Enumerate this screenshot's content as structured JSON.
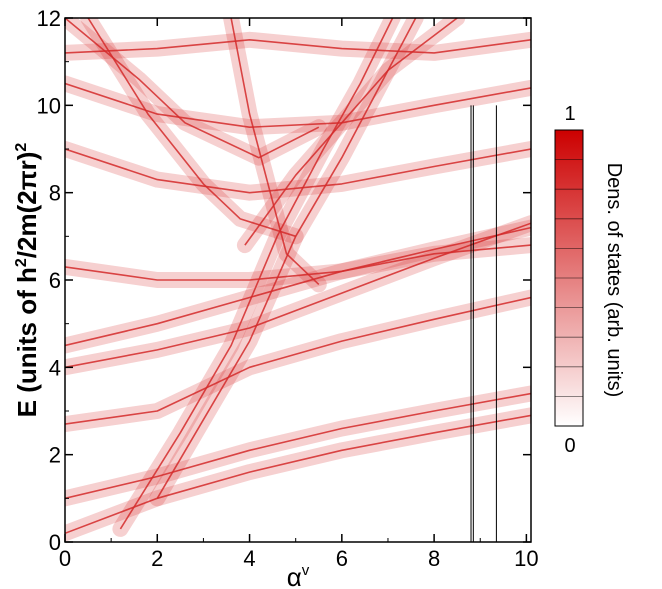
{
  "chart_data": {
    "type": "line",
    "xlabel_symbol": "α",
    "xlabel_superscript": "v",
    "ylabel_main": "E (units of h",
    "ylabel_sup1": "2",
    "ylabel_mid": "/2m(2πr)",
    "ylabel_sup2": "2",
    "xlim": [
      0,
      10.1
    ],
    "ylim": [
      0,
      12
    ],
    "x_ticks": [
      "0",
      "2",
      "4",
      "6",
      "8",
      "10"
    ],
    "y_ticks": [
      "0",
      "2",
      "4",
      "6",
      "8",
      "10",
      "12"
    ],
    "x_tick_values": [
      0,
      2,
      4,
      6,
      8,
      10
    ],
    "y_tick_values": [
      0,
      2,
      4,
      6,
      8,
      10,
      12
    ],
    "grid": false,
    "band_color": "#d42a2a",
    "colorbar": {
      "label": "Dens. of states (arb. units)",
      "max_label": "1",
      "min_label": "0",
      "range": [
        0,
        1
      ],
      "color_low": "#ffffff",
      "color_high": "#cc0000"
    },
    "series": [
      {
        "values": [
          [
            0,
            0.2
          ],
          [
            2,
            1.0
          ],
          [
            4,
            1.6
          ],
          [
            6,
            2.1
          ],
          [
            8,
            2.5
          ],
          [
            10.1,
            2.9
          ]
        ]
      },
      {
        "values": [
          [
            0,
            1.0
          ],
          [
            2,
            1.5
          ],
          [
            4,
            2.1
          ],
          [
            6,
            2.6
          ],
          [
            8,
            3.0
          ],
          [
            10.1,
            3.4
          ]
        ]
      },
      {
        "values": [
          [
            0,
            2.7
          ],
          [
            2,
            3.0
          ],
          [
            4,
            4.0
          ],
          [
            6,
            4.6
          ],
          [
            8,
            5.1
          ],
          [
            10.1,
            5.6
          ]
        ]
      },
      {
        "values": [
          [
            0,
            4.0
          ],
          [
            2,
            4.4
          ],
          [
            4,
            4.9
          ],
          [
            6,
            5.7
          ],
          [
            8,
            6.5
          ],
          [
            10.1,
            7.3
          ]
        ]
      },
      {
        "values": [
          [
            0,
            4.5
          ],
          [
            2,
            5.0
          ],
          [
            4,
            5.6
          ],
          [
            6,
            6.2
          ],
          [
            8,
            6.7
          ],
          [
            10.1,
            7.2
          ]
        ]
      },
      {
        "values": [
          [
            0,
            6.3
          ],
          [
            2,
            6.0
          ],
          [
            4,
            6.0
          ],
          [
            6,
            6.2
          ],
          [
            8,
            6.6
          ],
          [
            10.1,
            6.8
          ]
        ]
      },
      {
        "values": [
          [
            0,
            9.0
          ],
          [
            2,
            8.3
          ],
          [
            4,
            8.0
          ],
          [
            6,
            8.2
          ],
          [
            8,
            8.6
          ],
          [
            10.1,
            9.0
          ]
        ]
      },
      {
        "values": [
          [
            0,
            10.5
          ],
          [
            2,
            9.8
          ],
          [
            4,
            9.5
          ],
          [
            6,
            9.6
          ],
          [
            8,
            10.0
          ],
          [
            10.1,
            10.4
          ]
        ]
      },
      {
        "values": [
          [
            0,
            11.2
          ],
          [
            2,
            11.3
          ],
          [
            4,
            11.5
          ],
          [
            6,
            11.3
          ],
          [
            8,
            11.2
          ],
          [
            10.1,
            11.5
          ]
        ]
      },
      {
        "values": [
          [
            1.2,
            0.3
          ],
          [
            2.5,
            2.5
          ],
          [
            3.6,
            4.5
          ],
          [
            4.6,
            7.0
          ],
          [
            5.6,
            9.0
          ],
          [
            6.4,
            10.5
          ],
          [
            7.1,
            12.0
          ]
        ]
      },
      {
        "values": [
          [
            2.0,
            1.0
          ],
          [
            3.0,
            2.8
          ],
          [
            4.0,
            4.6
          ],
          [
            5.0,
            7.0
          ],
          [
            6.0,
            8.8
          ],
          [
            7.0,
            10.8
          ],
          [
            7.6,
            12.0
          ]
        ]
      },
      {
        "values": [
          [
            3.6,
            12.0
          ],
          [
            4.0,
            9.8
          ],
          [
            4.5,
            7.8
          ],
          [
            4.8,
            6.6
          ],
          [
            5.5,
            5.9
          ]
        ]
      },
      {
        "values": [
          [
            0.5,
            12.0
          ],
          [
            1.8,
            9.8
          ],
          [
            3.0,
            8.2
          ],
          [
            3.8,
            7.4
          ],
          [
            5.0,
            7.0
          ]
        ]
      },
      {
        "values": [
          [
            3.9,
            6.8
          ],
          [
            5.0,
            8.4
          ],
          [
            6.0,
            9.6
          ],
          [
            7.0,
            10.8
          ],
          [
            8.0,
            11.6
          ],
          [
            8.5,
            12.0
          ]
        ]
      },
      {
        "values": [
          [
            0,
            12.0
          ],
          [
            1.6,
            10.6
          ],
          [
            2.6,
            9.6
          ],
          [
            4.2,
            8.8
          ],
          [
            5.5,
            9.5
          ]
        ]
      }
    ],
    "vertical_lines": [
      8.8,
      8.85,
      9.35
    ]
  }
}
